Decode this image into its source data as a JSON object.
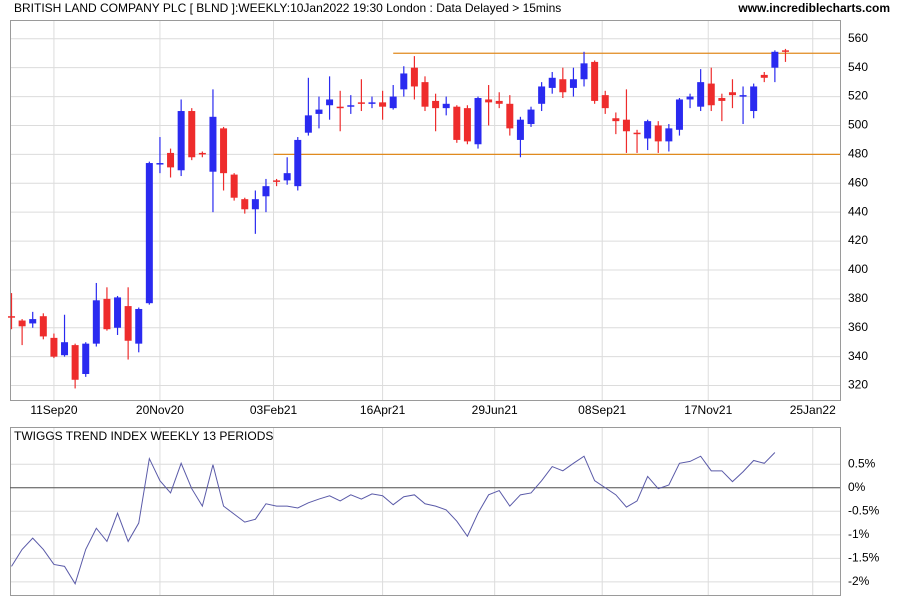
{
  "title": "BRITISH LAND COMPANY PLC [ BLND ]:WEEKLY:10Jan2022 19:30 London : Data Delayed > 15mins",
  "source": "www.incrediblecharts.com",
  "chart_data": [
    {
      "type": "candlestick",
      "x": [
        "14Aug20",
        "21Aug20",
        "28Aug20",
        "04Sep20",
        "11Sep20",
        "18Sep20",
        "25Sep20",
        "02Oct20",
        "09Oct20",
        "16Oct20",
        "23Oct20",
        "30Oct20",
        "06Nov20",
        "13Nov20",
        "20Nov20",
        "27Nov20",
        "04Dec20",
        "11Dec20",
        "18Dec20",
        "25Dec20",
        "01Jan21",
        "08Jan21",
        "15Jan21",
        "22Jan21",
        "29Jan21",
        "05Feb21",
        "12Feb21",
        "19Feb21",
        "26Feb21",
        "05Mar21",
        "12Mar21",
        "19Mar21",
        "26Mar21",
        "02Apr21",
        "09Apr21",
        "16Apr21",
        "23Apr21",
        "30Apr21",
        "07May21",
        "14May21",
        "21May21",
        "28May21",
        "04Jun21",
        "11Jun21",
        "18Jun21",
        "25Jun21",
        "02Jul21",
        "09Jul21",
        "16Jul21",
        "23Jul21",
        "30Jul21",
        "06Aug21",
        "13Aug21",
        "20Aug21",
        "27Aug21",
        "03Sep21",
        "10Sep21",
        "17Sep21",
        "24Sep21",
        "01Oct21",
        "08Oct21",
        "15Oct21",
        "22Oct21",
        "29Oct21",
        "05Nov21",
        "12Nov21",
        "19Nov21",
        "26Nov21",
        "03Dec21",
        "10Dec21",
        "17Dec21",
        "24Dec21",
        "31Dec21",
        "07Jan22"
      ],
      "open": [
        368,
        365,
        363,
        368,
        353,
        341,
        348,
        328,
        349,
        380,
        360,
        375,
        349,
        377,
        473,
        481,
        469,
        510,
        481,
        468,
        498,
        466,
        449,
        442,
        451,
        462,
        462,
        458,
        495,
        508,
        514,
        513,
        513,
        516,
        515,
        516,
        512,
        525,
        540,
        530,
        517,
        512,
        513,
        512,
        487,
        518,
        517,
        515,
        490,
        501,
        515,
        526,
        532,
        526,
        532,
        544,
        521,
        505,
        504,
        495,
        491,
        500,
        489,
        497,
        518,
        513,
        529,
        519,
        523,
        520,
        510,
        535,
        540,
        552
      ],
      "high": [
        384,
        366,
        371,
        370,
        356,
        369,
        349,
        350,
        391,
        388,
        382,
        388,
        374,
        475,
        492,
        484,
        518,
        512,
        482,
        525,
        499,
        467,
        450,
        455,
        463,
        463,
        478,
        492,
        533,
        520,
        534,
        524,
        521,
        532,
        520,
        524,
        528,
        541,
        548,
        534,
        522,
        520,
        514,
        514,
        520,
        528,
        523,
        521,
        506,
        513,
        530,
        537,
        540,
        540,
        551,
        545,
        524,
        509,
        525,
        497,
        504,
        503,
        501,
        519,
        522,
        539,
        540,
        522,
        532,
        527,
        529,
        537,
        552,
        553
      ],
      "low": [
        359,
        348,
        360,
        352,
        339,
        340,
        318,
        326,
        347,
        358,
        355,
        338,
        343,
        376,
        467,
        464,
        465,
        476,
        478,
        440,
        455,
        448,
        439,
        425,
        440,
        458,
        459,
        455,
        493,
        498,
        504,
        496,
        508,
        510,
        512,
        504,
        511,
        520,
        518,
        510,
        496,
        507,
        488,
        487,
        484,
        500,
        512,
        493,
        478,
        499,
        510,
        522,
        519,
        520,
        527,
        515,
        508,
        494,
        481,
        481,
        483,
        481,
        482,
        493,
        512,
        510,
        510,
        503,
        512,
        501,
        505,
        530,
        530,
        544
      ],
      "close": [
        367,
        361,
        366,
        354,
        340,
        350,
        324,
        349,
        379,
        359,
        381,
        351,
        373,
        474,
        474,
        471,
        510,
        478,
        480,
        506,
        467,
        450,
        442,
        449,
        458,
        461,
        467,
        490,
        507,
        511,
        518,
        512,
        514,
        515,
        516,
        513,
        520,
        536,
        527,
        513,
        512,
        515,
        490,
        489,
        519,
        516,
        515,
        498,
        504,
        511,
        527,
        533,
        523,
        532,
        543,
        517,
        512,
        503,
        496,
        494,
        503,
        489,
        498,
        518,
        520,
        530,
        514,
        517,
        521,
        521,
        527,
        533,
        551,
        551
      ],
      "up_color": "#2a2af0",
      "down_color": "#ee2c2c",
      "hlines": [
        {
          "value": 550,
          "start": "23Apr21",
          "color": "#e08a1e"
        },
        {
          "value": 480,
          "start": "03Feb21",
          "color": "#e08a1e"
        }
      ],
      "xlim": [
        "13Aug20",
        "12Feb22"
      ],
      "xticks": [
        "11Sep20",
        "20Nov20",
        "03Feb21",
        "16Apr21",
        "29Jun21",
        "08Sep21",
        "17Nov21",
        "25Jan22"
      ],
      "ylim": [
        310,
        573
      ],
      "yticks": [
        320,
        340,
        360,
        380,
        400,
        420,
        440,
        460,
        480,
        500,
        520,
        540,
        560
      ],
      "grid": true
    },
    {
      "type": "line",
      "title": "TWIGGS TREND INDEX WEEKLY 13 PERIODS",
      "x": [
        "14Aug20",
        "21Aug20",
        "28Aug20",
        "04Sep20",
        "11Sep20",
        "18Sep20",
        "25Sep20",
        "02Oct20",
        "09Oct20",
        "16Oct20",
        "23Oct20",
        "30Oct20",
        "06Nov20",
        "13Nov20",
        "20Nov20",
        "27Nov20",
        "04Dec20",
        "11Dec20",
        "18Dec20",
        "25Dec20",
        "01Jan21",
        "08Jan21",
        "15Jan21",
        "22Jan21",
        "29Jan21",
        "05Feb21",
        "12Feb21",
        "19Feb21",
        "26Feb21",
        "05Mar21",
        "12Mar21",
        "19Mar21",
        "26Mar21",
        "02Apr21",
        "09Apr21",
        "16Apr21",
        "23Apr21",
        "30Apr21",
        "07May21",
        "14May21",
        "21May21",
        "28May21",
        "04Jun21",
        "11Jun21",
        "18Jun21",
        "25Jun21",
        "02Jul21",
        "09Jul21",
        "16Jul21",
        "23Jul21",
        "30Jul21",
        "06Aug21",
        "13Aug21",
        "20Aug21",
        "27Aug21",
        "03Sep21",
        "10Sep21",
        "17Sep21",
        "24Sep21",
        "01Oct21",
        "08Oct21",
        "15Oct21",
        "22Oct21",
        "29Oct21",
        "05Nov21",
        "12Nov21",
        "19Nov21",
        "26Nov21",
        "03Dec21",
        "10Dec21",
        "17Dec21",
        "24Dec21",
        "31Dec21",
        "07Jan22"
      ],
      "series": [
        {
          "color": "#5a5aa8",
          "values": [
            -1.67,
            -1.31,
            -1.07,
            -1.31,
            -1.63,
            -1.67,
            -2.04,
            -1.31,
            -0.86,
            -1.14,
            -0.54,
            -1.14,
            -0.75,
            0.62,
            0.15,
            -0.11,
            0.52,
            -0.02,
            -0.39,
            0.49,
            -0.39,
            -0.56,
            -0.73,
            -0.67,
            -0.34,
            -0.39,
            -0.39,
            -0.43,
            -0.32,
            -0.24,
            -0.17,
            -0.28,
            -0.15,
            -0.24,
            -0.13,
            -0.17,
            -0.36,
            -0.19,
            -0.15,
            -0.34,
            -0.39,
            -0.47,
            -0.71,
            -1.03,
            -0.54,
            -0.15,
            -0.06,
            -0.39,
            -0.15,
            -0.11,
            0.15,
            0.45,
            0.36,
            0.52,
            0.67,
            0.15,
            0.0,
            -0.15,
            -0.41,
            -0.28,
            0.24,
            -0.02,
            0.06,
            0.52,
            0.56,
            0.67,
            0.36,
            0.36,
            0.13,
            0.34,
            0.58,
            0.52,
            0.75,
            null
          ]
        }
      ],
      "zero_line": 0,
      "xlim": [
        "13Aug20",
        "12Feb22"
      ],
      "ylim": [
        -2.3,
        1.27
      ],
      "yticks": [
        {
          "value": 0.5,
          "label": "0.5%"
        },
        {
          "value": 0,
          "label": "0%"
        },
        {
          "value": -0.5,
          "label": "-0.5%"
        },
        {
          "value": -1,
          "label": "-1%"
        },
        {
          "value": -1.5,
          "label": "-1.5%"
        },
        {
          "value": -2,
          "label": "-2%"
        }
      ],
      "grid": true
    }
  ]
}
